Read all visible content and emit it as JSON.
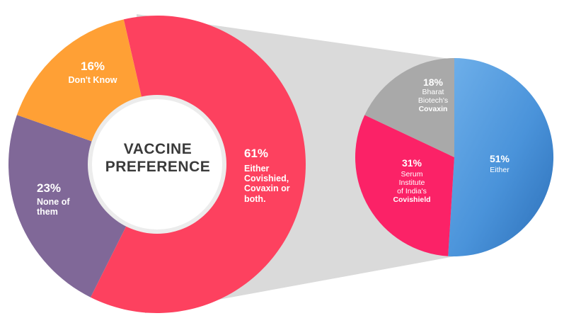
{
  "chart_data": [
    {
      "type": "pie",
      "title": "VACCINE PREFERENCE",
      "title_lines": [
        "VACCINE",
        "PREFERENCE"
      ],
      "slices": [
        {
          "percent": "61%",
          "value": 61,
          "label_lines": [
            "Either",
            "Covishied,",
            "Covaxin or",
            "both."
          ],
          "color": "#fd415f"
        },
        {
          "percent": "23%",
          "value": 23,
          "label_lines": [
            "None of",
            "them"
          ],
          "color": "#806898"
        },
        {
          "percent": "16%",
          "value": 16,
          "label_lines": [
            "Don't Know"
          ],
          "color": "#ffa035"
        }
      ]
    },
    {
      "type": "pie",
      "slices": [
        {
          "percent": "51%",
          "value": 51,
          "label_lines": [
            "Either"
          ],
          "color": "#3d89d0"
        },
        {
          "percent": "31%",
          "value": 31,
          "label_lines": [
            "Serum",
            "Institute",
            "of India's"
          ],
          "bold_line": "Covishield",
          "color": "#fb2267"
        },
        {
          "percent": "18%",
          "value": 18,
          "label_lines": [
            "Bharat",
            "Biotech's"
          ],
          "bold_line": "Covaxin",
          "color": "#a9a9a9"
        }
      ]
    }
  ],
  "colors": {
    "connector": "#dadada",
    "center_fill": "#ffffff",
    "center_ring": "#dedede",
    "title_text": "#3a3a3a"
  }
}
